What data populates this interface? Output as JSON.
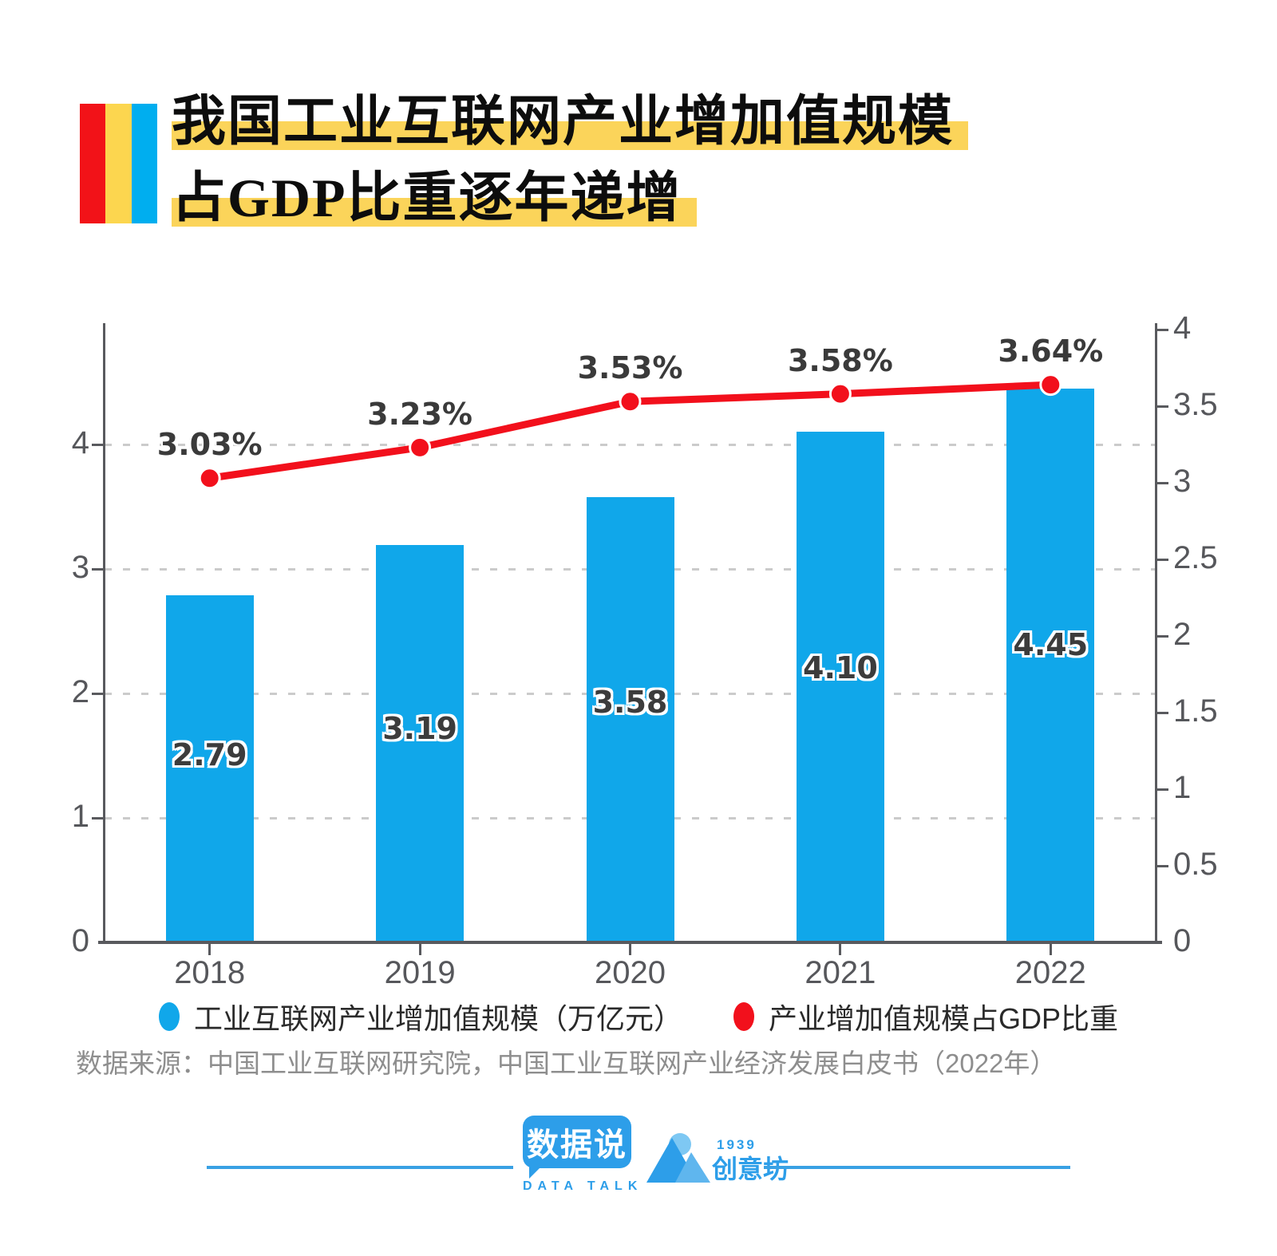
{
  "title": {
    "line1": "我国工业互联网产业增加值规模",
    "line2": "占GDP比重逐年递增"
  },
  "chart_data": {
    "type": "bar",
    "categories": [
      "2018",
      "2019",
      "2020",
      "2021",
      "2022"
    ],
    "series": [
      {
        "name": "工业互联网产业增加值规模（万亿元）",
        "type": "bar",
        "axis": "left",
        "values": [
          2.79,
          3.19,
          3.58,
          4.1,
          4.45
        ],
        "labels": [
          "2.79",
          "3.19",
          "3.58",
          "4.10",
          "4.45"
        ],
        "color": "#10a7ea"
      },
      {
        "name": "产业增加值规模占GDP比重",
        "type": "line",
        "axis": "right",
        "values": [
          3.03,
          3.23,
          3.53,
          3.58,
          3.64
        ],
        "labels": [
          "3.03%",
          "3.23%",
          "3.53%",
          "3.58%",
          "3.64%"
        ],
        "color": "#f2101c"
      }
    ],
    "left_axis": {
      "ticks": [
        "0",
        "1",
        "2",
        "3",
        "4"
      ],
      "min": 0,
      "max": 4.97
    },
    "right_axis": {
      "ticks": [
        "0",
        "0.5",
        "1",
        "1.5",
        "2",
        "2.5",
        "3",
        "3.5",
        "4"
      ],
      "min": 0,
      "max": 4
    },
    "grid": "horizontal dashed at left-axis ticks 1-4",
    "legend_position": "bottom"
  },
  "source": "数据来源：中国工业互联网研究院，中国工业互联网产业经济发展白皮书（2022年）",
  "footer": {
    "datatalk": {
      "name": "数据说",
      "sub": "DATA TALK"
    },
    "studio": {
      "year": "1939",
      "name": "创意坊"
    }
  },
  "colors": {
    "stripe_red": "#f21218",
    "stripe_yellow": "#fcd64f",
    "stripe_blue": "#00aeef",
    "title_highlight": "#fbd45a",
    "bar_blue": "#10a7ea",
    "line_red": "#f2101c",
    "axis_gray": "#595a5e",
    "grid_gray": "#cbcbcb",
    "footer_blue": "#2d9ee9"
  }
}
